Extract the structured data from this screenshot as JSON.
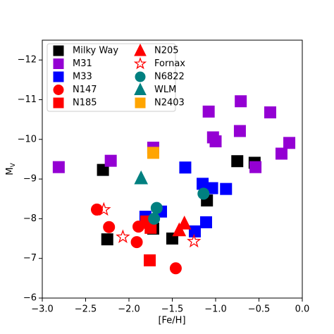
{
  "chart_data": {
    "type": "scatter",
    "xlabel": "[Fe/H]",
    "ylabel": "M",
    "ylabel_sub": "V",
    "xlim": [
      -3.0,
      0.0
    ],
    "xticks": [
      {
        "value": -3.0,
        "label": "−3.0"
      },
      {
        "value": -2.5,
        "label": "−2.5"
      },
      {
        "value": -2.0,
        "label": "−2.0"
      },
      {
        "value": -1.5,
        "label": "−1.5"
      },
      {
        "value": -1.0,
        "label": "−1.0"
      },
      {
        "value": -0.5,
        "label": "−0.5"
      },
      {
        "value": 0.0,
        "label": "0.0"
      }
    ],
    "ylim": [
      -6,
      -12.5
    ],
    "yticks": [
      {
        "value": -6,
        "label": "−6"
      },
      {
        "value": -7,
        "label": "−7"
      },
      {
        "value": -8,
        "label": "−8"
      },
      {
        "value": -9,
        "label": "−9"
      },
      {
        "value": -10,
        "label": "−10"
      },
      {
        "value": -11,
        "label": "−11"
      },
      {
        "value": -12,
        "label": "−12"
      }
    ],
    "legend": "upper left",
    "series": [
      {
        "name": "Milky Way",
        "color": "#000000",
        "marker": "square",
        "x": [
          -2.3,
          -2.25,
          -1.72,
          -1.5,
          -1.1,
          -0.75,
          -0.55
        ],
        "values": [
          -9.23,
          -7.48,
          -7.75,
          -7.5,
          -8.46,
          -9.45,
          -9.41
        ]
      },
      {
        "name": "M31",
        "color": "#9400d3",
        "marker": "square",
        "x": [
          -2.81,
          -2.21,
          -1.72,
          -1.08,
          -1.03,
          -1.0,
          -0.71,
          -0.72,
          -0.37,
          -0.54,
          -0.24,
          -0.15
        ],
        "values": [
          -9.3,
          -9.46,
          -9.79,
          -10.7,
          -10.05,
          -9.95,
          -10.96,
          -10.21,
          -10.68,
          -9.3,
          -9.64,
          -9.91
        ]
      },
      {
        "name": "M33",
        "color": "#0000ff",
        "marker": "square",
        "x": [
          -1.81,
          -1.63,
          -1.35,
          -1.15,
          -1.04,
          -0.88,
          -1.11,
          -1.24
        ],
        "values": [
          -8.05,
          -8.18,
          -9.29,
          -8.88,
          -8.77,
          -8.75,
          -7.91,
          -7.68
        ]
      },
      {
        "name": "N147",
        "color": "#ff0000",
        "marker": "circle",
        "x": [
          -2.37,
          -2.23,
          -1.91,
          -1.89,
          -1.79,
          -1.46
        ],
        "values": [
          -8.23,
          -7.79,
          -7.41,
          -7.8,
          -7.88,
          -6.75
        ]
      },
      {
        "name": "N185",
        "color": "#ff0000",
        "marker": "square",
        "x": [
          -1.76,
          -1.8,
          -1.75
        ],
        "values": [
          -6.95,
          -7.93,
          -7.77
        ]
      },
      {
        "name": "N205",
        "color": "#ff0000",
        "marker": "triangle",
        "x": [
          -1.36,
          -1.42
        ],
        "values": [
          -7.88,
          -7.71
        ]
      },
      {
        "name": "Fornax",
        "color": "#ff0000",
        "marker": "star",
        "x": [
          -2.29,
          -2.07,
          -1.25
        ],
        "values": [
          -8.23,
          -7.54,
          -7.43
        ]
      },
      {
        "name": "N6822",
        "color": "#008080",
        "marker": "circle",
        "x": [
          -1.68,
          -1.71,
          -1.14
        ],
        "values": [
          -8.27,
          -8.0,
          -8.63
        ]
      },
      {
        "name": "WLM",
        "color": "#008080",
        "marker": "triangle",
        "x": [
          -1.86
        ],
        "values": [
          -9.02
        ]
      },
      {
        "name": "N2403",
        "color": "#ffa500",
        "marker": "square",
        "x": [
          -1.72
        ],
        "values": [
          -9.66
        ]
      }
    ]
  }
}
